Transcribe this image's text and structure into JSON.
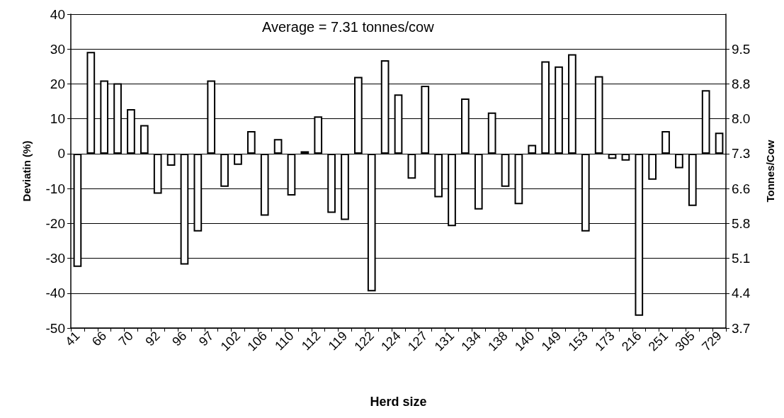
{
  "chart_data": {
    "type": "bar",
    "xlabel": "Herd size",
    "ylabel": "Deviatin (%)",
    "y2label": "Tonnes/Cow",
    "annotations": [
      "Average = 7.31 tonnes/cow"
    ],
    "categories": [
      "41",
      null,
      "66",
      null,
      "70",
      null,
      "92",
      null,
      "96",
      null,
      "97",
      null,
      "102",
      null,
      "106",
      null,
      "110",
      null,
      "112",
      null,
      "119",
      null,
      "122",
      null,
      "124",
      null,
      "127",
      null,
      "131",
      null,
      "134",
      null,
      "138",
      null,
      "140",
      null,
      "149",
      null,
      "153",
      null,
      "173",
      null,
      "216",
      null,
      "251",
      null,
      "305",
      null,
      "729"
    ],
    "values": [
      -32.5,
      29.2,
      21,
      20.2,
      12.8,
      8.2,
      -11.5,
      -3.5,
      -31.8,
      -22.3,
      21,
      -9.5,
      -3.2,
      6.5,
      -17.8,
      4.2,
      -12,
      0.7,
      10.7,
      -17,
      -19,
      22,
      -39.5,
      26.8,
      17,
      -7.2,
      19.5,
      -12.5,
      -20.8,
      15.8,
      -16,
      11.8,
      -9.5,
      -14.5,
      2.5,
      26.5,
      25,
      28.5,
      -22.3,
      22.2,
      -1.5,
      -2,
      -46.5,
      -7.5,
      6.5,
      -4.2,
      -15,
      18.2,
      6
    ],
    "color": "#ffffff",
    "ylim": [
      -50,
      40
    ],
    "yticks": [
      -50,
      -40,
      -30,
      -20,
      -10,
      0,
      10,
      20,
      30,
      40
    ],
    "y2lim": [
      3.655,
      10.234
    ],
    "y2ticks": [
      {
        "value": 3.655,
        "label": "3.7"
      },
      {
        "value": 4.386,
        "label": "4.4"
      },
      {
        "value": 5.117,
        "label": "5.1"
      },
      {
        "value": 5.848,
        "label": "5.8"
      },
      {
        "value": 6.579,
        "label": "6.6"
      },
      {
        "value": 7.31,
        "label": "7.3"
      },
      {
        "value": 8.041,
        "label": "8.0"
      },
      {
        "value": 8.772,
        "label": "8.8"
      },
      {
        "value": 9.503,
        "label": "9.5"
      }
    ],
    "grid": "y"
  }
}
